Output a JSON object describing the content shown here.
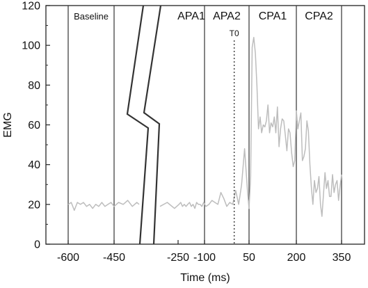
{
  "chart_data": {
    "type": "line",
    "xlabel": "Time (ms)",
    "ylabel": "EMG",
    "ylim": [
      0,
      120
    ],
    "x_tick_labels": [
      "-600",
      "-450",
      "-250",
      "-100",
      "50",
      "200",
      "350"
    ],
    "y_tick_labels": [
      "0",
      "20",
      "40",
      "60",
      "80",
      "100",
      "120"
    ],
    "axis_break": "between -450 and -250",
    "phase_boundaries": [
      -600,
      -450,
      -100,
      50,
      200,
      350
    ],
    "phases": [
      {
        "label": "Baseline",
        "from": -600,
        "to": -450
      },
      {
        "label": "APA1",
        "from": -250,
        "to": -100
      },
      {
        "label": "APA2",
        "from": -100,
        "to": 50
      },
      {
        "label": "CPA1",
        "from": 50,
        "to": 200
      },
      {
        "label": "CPA2",
        "from": 200,
        "to": 350
      }
    ],
    "marker": {
      "label": "T0",
      "x": 0,
      "style": "dotted"
    },
    "series": [
      {
        "color": "#bdbdbd",
        "segments": [
          {
            "x": [
              -600,
              -590,
              -580,
              -570,
              -560,
              -550,
              -540,
              -530,
              -520,
              -510,
              -500,
              -490,
              -480,
              -470,
              -460,
              -450,
              -440,
              -430,
              -420,
              -410,
              -400,
              -395
            ],
            "y": [
              20,
              21,
              17,
              21,
              20,
              21,
              19,
              20,
              18,
              20,
              19,
              21,
              19,
              20,
              21,
              19,
              21,
              20,
              22,
              19,
              21,
              20
            ]
          },
          {
            "x": [
              -275,
              -265,
              -255,
              -245,
              -235,
              -225,
              -215,
              -205,
              -195,
              -185,
              -175,
              -165,
              -155,
              -145,
              -135,
              -125,
              -115,
              -105,
              -95,
              -85,
              -75,
              -65,
              -55,
              -45,
              -35,
              -25,
              -15,
              -5,
              5,
              15,
              25,
              35,
              45,
              50,
              55,
              60,
              65,
              70,
              75,
              80,
              85,
              90,
              95,
              100,
              105,
              110,
              115,
              120,
              125,
              130,
              135,
              140,
              145,
              150,
              155,
              160,
              165,
              170,
              175,
              180,
              185,
              190,
              195,
              200,
              205,
              210,
              215,
              220,
              225,
              230,
              235,
              240,
              245,
              250,
              255,
              260,
              265,
              270,
              275,
              280,
              285,
              290,
              295,
              300,
              305,
              310,
              315,
              320,
              325,
              330,
              335,
              340,
              345,
              350
            ],
            "y": [
              19,
              21,
              18,
              20,
              21,
              19,
              20,
              19,
              20,
              21,
              19,
              20,
              18,
              21,
              20,
              20,
              19,
              21,
              19,
              20,
              22,
              21,
              20,
              26,
              23,
              19,
              21,
              20,
              27,
              20,
              30,
              48,
              26,
              18,
              34,
              99,
              104,
              96,
              80,
              58,
              64,
              56,
              60,
              59,
              62,
              70,
              56,
              61,
              59,
              64,
              56,
              69,
              49,
              58,
              63,
              62,
              55,
              47,
              58,
              56,
              46,
              39,
              42,
              67,
              58,
              62,
              66,
              42,
              44,
              48,
              62,
              57,
              40,
              28,
              20,
              32,
              26,
              28,
              34,
              20,
              14,
              25,
              36,
              28,
              32,
              24,
              24,
              35,
              26,
              30,
              32,
              22,
              29,
              35
            ]
          }
        ]
      }
    ]
  }
}
